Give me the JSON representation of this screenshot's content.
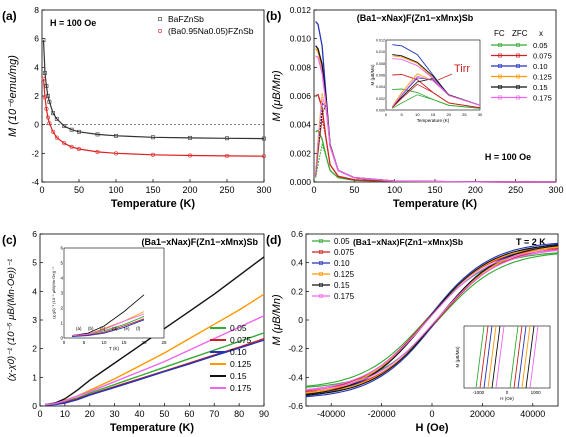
{
  "chart_data": [
    {
      "panel_label": "(a)",
      "type": "line",
      "title": "",
      "xlabel": "Temperature (K)",
      "ylabel": "M (10⁻⁶emu/mg)",
      "xlim": [
        0,
        300
      ],
      "ylim": [
        -4,
        8
      ],
      "xticks": [
        0,
        50,
        100,
        150,
        200,
        250,
        300
      ],
      "yticks": [
        -4,
        -2,
        0,
        2,
        4,
        6,
        8
      ],
      "annotations": [
        "H = 100 Oe"
      ],
      "legend_position": "top-right",
      "grid": false,
      "series": [
        {
          "name": "BaFZnSb",
          "color": "#333333",
          "marker": "square",
          "x": [
            2,
            4,
            6,
            8,
            10,
            15,
            20,
            30,
            40,
            50,
            75,
            100,
            150,
            200,
            250,
            300
          ],
          "y": [
            5.9,
            3.6,
            2.7,
            2.0,
            1.6,
            0.8,
            0.4,
            -0.1,
            -0.35,
            -0.5,
            -0.68,
            -0.78,
            -0.88,
            -0.92,
            -0.95,
            -0.97
          ]
        },
        {
          "name": "(Ba0.95Na0.05)FZnSb",
          "color": "#dd2222",
          "marker": "circle",
          "x": [
            2,
            4,
            6,
            8,
            10,
            15,
            20,
            30,
            40,
            50,
            75,
            100,
            150,
            200,
            250,
            300
          ],
          "y": [
            3.2,
            1.9,
            1.1,
            0.5,
            0.1,
            -0.5,
            -0.9,
            -1.3,
            -1.55,
            -1.7,
            -1.9,
            -2.0,
            -2.1,
            -2.15,
            -2.18,
            -2.2
          ]
        }
      ]
    },
    {
      "panel_label": "(b)",
      "type": "line",
      "title": "(Ba1−xNax)F(Zn1−xMnx)Sb",
      "xlabel": "Temperature (K)",
      "ylabel": "M (μB/Mn)",
      "xlim": [
        0,
        300
      ],
      "ylim": [
        0,
        0.012
      ],
      "xticks": [
        0,
        50,
        100,
        150,
        200,
        250,
        300
      ],
      "yticks": [
        "0.000",
        "0.002",
        "0.004",
        "0.006",
        "0.008",
        "0.010",
        "0.012"
      ],
      "annotations": [
        "H = 100 Oe",
        "Tirr"
      ],
      "legend_headers": [
        "FC",
        "ZFC",
        "x"
      ],
      "legend_position": "right",
      "inset": {
        "xlabel": "Temperature (K)",
        "ylabel": "M (μB/Mn)",
        "xticks": [
          0,
          5,
          10,
          15,
          20,
          25,
          30
        ],
        "yticks": [
          "0.000",
          "0.002",
          "0.004",
          "0.006",
          "0.008",
          "0.010",
          "0.012"
        ]
      },
      "series": [
        {
          "name": "0.05",
          "color": "#33aa33",
          "fc": {
            "x": [
              2,
              5,
              10,
              15,
              20,
              30,
              50,
              100,
              200,
              300
            ],
            "y": [
              0.0035,
              0.0036,
              0.003,
              0.0018,
              0.0008,
              0.0003,
              0.00012,
              4e-05,
              1e-05,
              0.0
            ]
          },
          "zfc": {
            "x": [
              2,
              5,
              10,
              15,
              20,
              30,
              50
            ],
            "y": [
              0.0003,
              0.0012,
              0.0026,
              0.0018,
              0.0008,
              0.0003,
              0.00012
            ]
          }
        },
        {
          "name": "0.075",
          "color": "#cc2222",
          "fc": {
            "x": [
              2,
              5,
              10,
              15,
              20,
              30,
              50,
              100,
              200,
              300
            ],
            "y": [
              0.006,
              0.0061,
              0.0052,
              0.003,
              0.0012,
              0.0004,
              0.00015,
              4e-05,
              1e-05,
              0.0
            ]
          },
          "zfc": {
            "x": [
              2,
              5,
              10,
              15,
              20,
              30,
              50
            ],
            "y": [
              0.0004,
              0.002,
              0.0044,
              0.003,
              0.0012,
              0.0004,
              0.00015
            ]
          }
        },
        {
          "name": "0.10",
          "color": "#2233bb",
          "fc": {
            "x": [
              2,
              5,
              10,
              15,
              20,
              30,
              50,
              100,
              200,
              300
            ],
            "y": [
              0.0112,
              0.011,
              0.0095,
              0.006,
              0.0025,
              0.0008,
              0.0003,
              6e-05,
              1e-05,
              0.0
            ]
          },
          "zfc": {
            "x": [
              2,
              5,
              10,
              15,
              20,
              30,
              50
            ],
            "y": [
              0.0005,
              0.0025,
              0.0055,
              0.0052,
              0.0025,
              0.0008,
              0.0003
            ]
          }
        },
        {
          "name": "0.125",
          "color": "#ff9900",
          "fc": {
            "x": [
              2,
              5,
              10,
              15,
              20,
              30,
              50,
              100,
              200,
              300
            ],
            "y": [
              0.0093,
              0.0091,
              0.008,
              0.0055,
              0.0025,
              0.0008,
              0.0003,
              6e-05,
              1e-05,
              0.0
            ]
          },
          "zfc": {
            "x": [
              2,
              5,
              10,
              15,
              20,
              30,
              50
            ],
            "y": [
              0.0006,
              0.003,
              0.0062,
              0.005,
              0.0025,
              0.0008,
              0.0003
            ]
          }
        },
        {
          "name": "0.15",
          "color": "#111111",
          "fc": {
            "x": [
              2,
              5,
              10,
              15,
              20,
              30,
              50,
              100,
              200,
              300
            ],
            "y": [
              0.0095,
              0.0093,
              0.0082,
              0.0058,
              0.0026,
              0.0008,
              0.0003,
              6e-05,
              1e-05,
              0.0
            ]
          },
          "zfc": {
            "x": [
              2,
              5,
              10,
              15,
              20,
              30,
              50
            ],
            "y": [
              0.0005,
              0.0022,
              0.0048,
              0.0054,
              0.0026,
              0.0008,
              0.0003
            ]
          }
        },
        {
          "name": "0.175",
          "color": "#ee66ee",
          "fc": {
            "x": [
              2,
              5,
              10,
              15,
              20,
              30,
              50,
              100,
              200,
              300
            ],
            "y": [
              0.0088,
              0.0087,
              0.0076,
              0.0054,
              0.0025,
              0.0008,
              0.0003,
              6e-05,
              1e-05,
              0.0
            ]
          },
          "zfc": {
            "x": [
              2,
              5,
              10,
              15,
              20,
              30,
              50
            ],
            "y": [
              0.0005,
              0.0026,
              0.0058,
              0.005,
              0.0025,
              0.0008,
              0.0003
            ]
          }
        }
      ]
    },
    {
      "panel_label": "(c)",
      "type": "line",
      "title": "(Ba1−xNax)F(Zn1−xMnx)Sb",
      "xlabel": "Temperature (K)",
      "ylabel": "(χ-χ0)⁻¹ (10⁻⁵ μB/(Mn·Oe))⁻¹",
      "xlim": [
        0,
        90
      ],
      "ylim": [
        0,
        6
      ],
      "xticks": [
        0,
        10,
        20,
        30,
        40,
        50,
        60,
        70,
        80,
        90
      ],
      "yticks": [
        0,
        1,
        2,
        3,
        4,
        5,
        6
      ],
      "legend_position": "bottom-right",
      "inset": {
        "xlabel": "T (K)",
        "ylabel": "(χ-χ0)⁻¹ (10⁻⁵ μB/(Mn·Oe))⁻¹",
        "xticks": [
          0,
          5,
          10,
          15,
          20,
          25
        ],
        "yticks": [
          0,
          1,
          2,
          3,
          4,
          5,
          6
        ],
        "annotations": [
          "(a)",
          "(b)",
          "(c)",
          "(d)",
          "(e)",
          "(f)"
        ]
      },
      "series": [
        {
          "name": "0.05",
          "color": "#33aa33",
          "x": [
            2,
            6,
            10,
            15,
            20,
            30,
            40,
            50,
            60,
            70,
            80,
            90
          ],
          "y": [
            0.05,
            0.08,
            0.15,
            0.28,
            0.45,
            0.75,
            1.05,
            1.35,
            1.65,
            1.95,
            2.25,
            2.55
          ]
        },
        {
          "name": "0.075",
          "color": "#cc2222",
          "x": [
            2,
            6,
            10,
            15,
            20,
            30,
            40,
            50,
            60,
            70,
            80,
            90
          ],
          "y": [
            0.04,
            0.06,
            0.12,
            0.25,
            0.4,
            0.68,
            0.95,
            1.22,
            1.5,
            1.78,
            2.05,
            2.35
          ]
        },
        {
          "name": "0.10",
          "color": "#2233bb",
          "x": [
            2,
            6,
            10,
            15,
            20,
            30,
            40,
            50,
            60,
            70,
            80,
            90
          ],
          "y": [
            0.03,
            0.05,
            0.1,
            0.22,
            0.38,
            0.65,
            0.92,
            1.2,
            1.47,
            1.75,
            2.02,
            2.3
          ]
        },
        {
          "name": "0.125",
          "color": "#ff9900",
          "x": [
            2,
            6,
            10,
            15,
            20,
            30,
            40,
            50,
            60,
            70,
            80,
            90
          ],
          "y": [
            0.05,
            0.08,
            0.2,
            0.35,
            0.55,
            0.95,
            1.4,
            1.85,
            2.35,
            2.85,
            3.35,
            3.9
          ]
        },
        {
          "name": "0.15",
          "color": "#111111",
          "x": [
            2,
            6,
            10,
            15,
            20,
            30,
            40,
            50,
            60,
            70,
            80,
            90
          ],
          "y": [
            0.05,
            0.1,
            0.25,
            0.55,
            0.9,
            1.5,
            2.1,
            2.7,
            3.3,
            3.9,
            4.55,
            5.2
          ]
        },
        {
          "name": "0.175",
          "color": "#ee66ee",
          "x": [
            2,
            6,
            10,
            15,
            20,
            30,
            40,
            50,
            60,
            70,
            80,
            90
          ],
          "y": [
            0.05,
            0.08,
            0.18,
            0.35,
            0.5,
            0.85,
            1.2,
            1.55,
            1.95,
            2.35,
            2.75,
            3.15
          ]
        }
      ]
    },
    {
      "panel_label": "(d)",
      "type": "line",
      "title": "(Ba1−xNax)F(Zn1−xMnx)Sb",
      "xlabel": "H (Oe)",
      "ylabel": "M (μB/Mn)",
      "xlim": [
        -50000,
        50000
      ],
      "ylim": [
        -0.6,
        0.6
      ],
      "xticks": [
        -40000,
        -20000,
        0,
        20000,
        40000
      ],
      "yticks": [
        -0.6,
        -0.4,
        -0.2,
        0.0,
        0.2,
        0.4,
        0.6
      ],
      "annotations": [
        "T = 2 K"
      ],
      "legend_position": "top-left",
      "inset": {
        "xlabel": "H (Oe)",
        "ylabel": "M (μB/Mn)",
        "xticks": [
          -1000,
          0,
          1000
        ]
      },
      "series": [
        {
          "name": "0.05",
          "color": "#33aa33",
          "Ms": 0.42,
          "Hc": 800
        },
        {
          "name": "0.075",
          "color": "#cc2222",
          "Ms": 0.45,
          "Hc": 750
        },
        {
          "name": "0.10",
          "color": "#2233bb",
          "Ms": 0.48,
          "Hc": 700
        },
        {
          "name": "0.125",
          "color": "#ff9900",
          "Ms": 0.46,
          "Hc": 650
        },
        {
          "name": "0.15",
          "color": "#111111",
          "Ms": 0.47,
          "Hc": 600
        },
        {
          "name": "0.175",
          "color": "#ee66ee",
          "Ms": 0.44,
          "Hc": 550
        }
      ]
    }
  ]
}
